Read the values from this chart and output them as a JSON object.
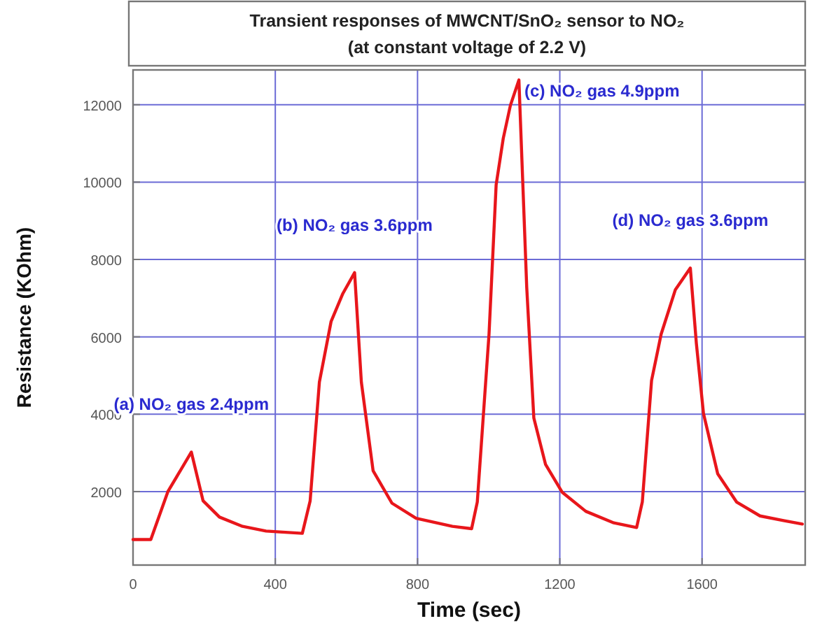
{
  "chart_data": {
    "type": "line",
    "title": "Transient responses of MWCNT/SnO₂ sensor to NO₂",
    "subtitle": "(at constant voltage of 2.2 V)",
    "xlabel": "Time (sec)",
    "ylabel": "Resistance (KOhm)",
    "x": [
      0,
      50,
      98,
      164,
      197,
      243,
      308,
      374,
      476,
      498,
      524,
      557,
      590,
      623,
      642,
      675,
      728,
      796,
      898,
      952,
      968,
      1001,
      1021,
      1041,
      1061,
      1085,
      1107,
      1127,
      1160,
      1207,
      1273,
      1352,
      1416,
      1432,
      1458,
      1485,
      1525,
      1567,
      1584,
      1604,
      1644,
      1697,
      1763,
      1829,
      1882
    ],
    "series": [
      {
        "color": "#e8161b",
        "values": [
          760,
          760,
          2000,
          3020,
          1760,
          1340,
          1100,
          980,
          920,
          1760,
          4830,
          6400,
          7120,
          7660,
          4830,
          2540,
          1700,
          1310,
          1100,
          1040,
          1730,
          6070,
          9930,
          11130,
          11980,
          12640,
          7280,
          3900,
          2700,
          1980,
          1490,
          1190,
          1070,
          1730,
          4870,
          6070,
          7220,
          7780,
          5830,
          4020,
          2460,
          1730,
          1370,
          1250,
          1160
        ]
      }
    ],
    "xlim": [
      0,
      1890
    ],
    "ylim": [
      100,
      12900
    ],
    "xticks": [
      0,
      400,
      800,
      1200,
      1600
    ],
    "yticks": [
      2000,
      4000,
      6000,
      8000,
      10000,
      12000
    ],
    "grid": true,
    "marker": "none",
    "line_style": "solid",
    "annotations": [
      "(a) NO₂ gas 2.4ppm",
      "(b) NO₂ gas 3.6ppm",
      "(c) NO₂ gas 4.9ppm",
      "(d) NO₂ gas 3.6ppm"
    ]
  }
}
